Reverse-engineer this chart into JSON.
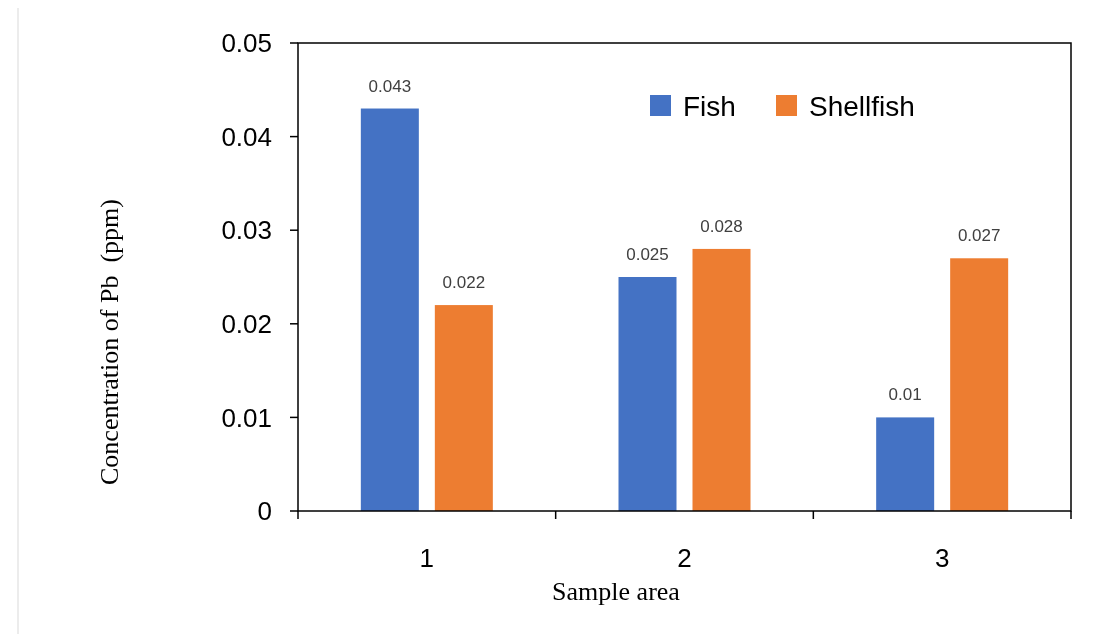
{
  "chart_data": {
    "type": "bar",
    "xlabel": "Sample area",
    "ylabel": "Concentration of Pb  (ppm)",
    "categories": [
      "1",
      "2",
      "3"
    ],
    "series": [
      {
        "name": "Fish",
        "color": "#4472c4",
        "values": [
          0.043,
          0.025,
          0.01
        ]
      },
      {
        "name": "Shellfish",
        "color": "#ed7d31",
        "values": [
          0.022,
          0.028,
          0.027
        ]
      }
    ],
    "ylim": [
      0,
      0.05
    ],
    "yticks": [
      0,
      0.01,
      0.02,
      0.03,
      0.04,
      0.05
    ],
    "data_labels": true,
    "legend": "top right",
    "grid": false
  }
}
